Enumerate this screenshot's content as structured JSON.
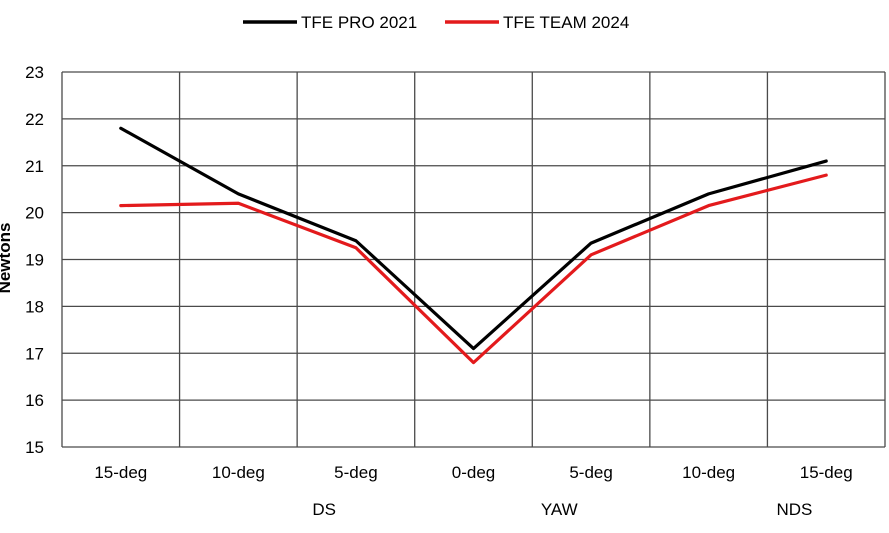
{
  "chart_data": {
    "type": "line",
    "categories": [
      "15-deg",
      "10-deg",
      "5-deg",
      "0-deg",
      "5-deg",
      "10-deg",
      "15-deg"
    ],
    "group_labels": [
      "DS",
      "YAW",
      "NDS"
    ],
    "ylabel": "Newtons",
    "ylim": [
      15,
      23
    ],
    "yticks": [
      15,
      16,
      17,
      18,
      19,
      20,
      21,
      22,
      23
    ],
    "grid": true,
    "legend_position": "top",
    "series": [
      {
        "name": "TFE PRO 2021",
        "color": "#000000",
        "values": [
          21.8,
          20.4,
          19.4,
          17.1,
          19.35,
          20.4,
          21.1
        ]
      },
      {
        "name": "TFE TEAM 2024",
        "color": "#e31a1c",
        "values": [
          20.15,
          20.2,
          19.25,
          16.8,
          19.1,
          20.15,
          20.8
        ]
      }
    ]
  }
}
